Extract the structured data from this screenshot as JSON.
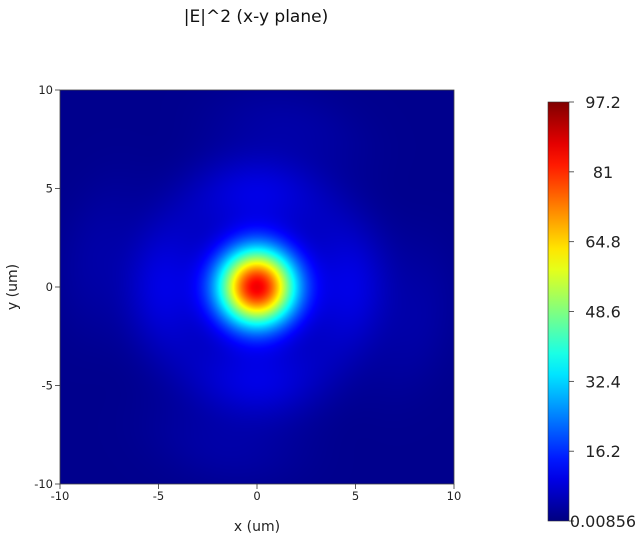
{
  "chart_data": {
    "type": "heatmap",
    "title": "|E|^2 (x-y plane)",
    "xlabel": "x (um)",
    "ylabel": "y (um)",
    "xlim": [
      -10,
      10
    ],
    "ylim": [
      -10,
      10
    ],
    "x_ticks": [
      -10,
      -5,
      0,
      5,
      10
    ],
    "y_ticks": [
      -10,
      -5,
      0,
      5,
      10
    ],
    "x_tick_labels": [
      "-10",
      "-5",
      "0",
      "5",
      "10"
    ],
    "y_tick_labels": [
      "-10",
      "-5",
      "0",
      "5",
      "10"
    ],
    "colormap": "jet",
    "colorbar": {
      "min": 0.00856,
      "max": 97.2,
      "tick_values": [
        97.2,
        81,
        64.8,
        48.6,
        32.4,
        16.2,
        0.00856
      ],
      "tick_labels": [
        "97.2",
        "81",
        "64.8",
        "48.6",
        "32.4",
        "16.2",
        "0.00856"
      ]
    },
    "field": {
      "peak_center": [
        0,
        0
      ],
      "peak_value": 97.2,
      "core_radius_um": 1.4,
      "ring_radius_um": 4.8,
      "ring_value": 7.5,
      "background_value": 1.5
    },
    "grid": false
  }
}
